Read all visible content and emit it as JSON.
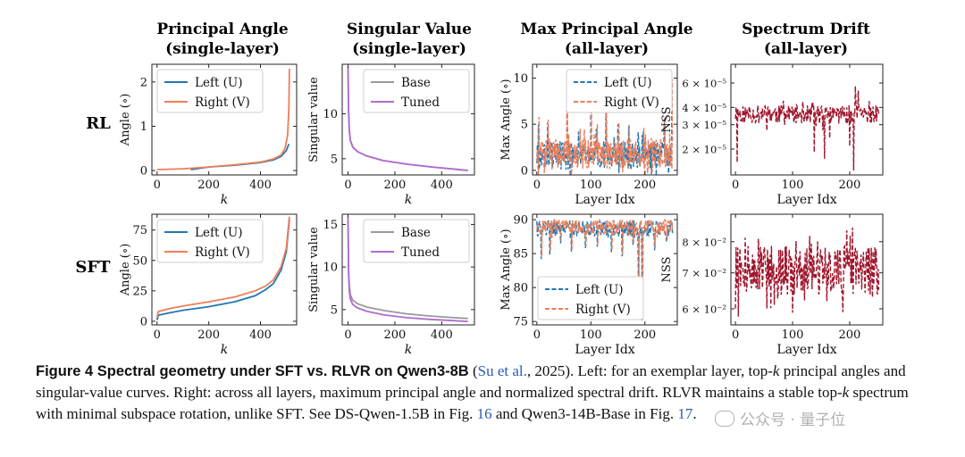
{
  "row_labels": [
    "RL",
    "SFT"
  ],
  "columns": [
    {
      "title": "Principal Angle",
      "subtitle": "(single-layer)"
    },
    {
      "title": "Singular Value",
      "subtitle": "(single-layer)"
    },
    {
      "title": "Max Principal Angle",
      "subtitle": "(all-layer)"
    },
    {
      "title": "Spectrum Drift",
      "subtitle": "(all-layer)"
    }
  ],
  "colors": {
    "blue": "#1f77b4",
    "orange": "#ee7e58",
    "gray": "#999999",
    "purple": "#b06bd0",
    "crimson": "#a0162d"
  },
  "chart_data": [
    {
      "id": "rl-angle",
      "type": "line",
      "xlabel": "k",
      "ylabel": "Angle (∘)",
      "xlim": [
        -20,
        540
      ],
      "ylim": [
        -0.1,
        2.4
      ],
      "xticks": [
        0,
        200,
        400
      ],
      "yticks": [
        0,
        1,
        2
      ],
      "legend_position": "top-left",
      "series": [
        {
          "name": "Left (U)",
          "color": "blue",
          "style": "solid",
          "x": [
            130,
            200,
            300,
            400,
            450,
            480,
            500,
            510
          ],
          "y": [
            0.02,
            0.08,
            0.12,
            0.18,
            0.24,
            0.32,
            0.45,
            0.6
          ]
        },
        {
          "name": "Right (V)",
          "color": "orange",
          "style": "solid",
          "x": [
            0,
            100,
            200,
            300,
            400,
            450,
            480,
            495,
            505,
            510,
            512
          ],
          "y": [
            0.02,
            0.04,
            0.08,
            0.13,
            0.19,
            0.26,
            0.35,
            0.5,
            0.8,
            1.4,
            2.3
          ]
        }
      ]
    },
    {
      "id": "rl-sv",
      "type": "line",
      "xlabel": "k",
      "ylabel": "Singular value",
      "xlim": [
        -25,
        540
      ],
      "ylim": [
        3.2,
        15.5
      ],
      "xticks": [
        0,
        200,
        400
      ],
      "yticks": [
        5,
        10
      ],
      "legend_position": "top-right",
      "series": [
        {
          "name": "Base",
          "color": "gray",
          "style": "solid",
          "x": [
            0,
            2,
            5,
            10,
            20,
            40,
            80,
            150,
            250,
            350,
            450,
            512
          ],
          "y": [
            15.2,
            10.5,
            8.2,
            7.0,
            6.3,
            5.8,
            5.3,
            4.8,
            4.4,
            4.1,
            3.85,
            3.7
          ]
        },
        {
          "name": "Tuned",
          "color": "purple",
          "style": "solid",
          "x": [
            0,
            2,
            5,
            10,
            20,
            40,
            80,
            150,
            250,
            350,
            450,
            512
          ],
          "y": [
            15.2,
            10.5,
            8.2,
            7.0,
            6.3,
            5.8,
            5.3,
            4.8,
            4.4,
            4.1,
            3.85,
            3.7
          ]
        }
      ]
    },
    {
      "id": "rl-max",
      "type": "line",
      "xlabel": "Layer Idx",
      "ylabel": "Max Angle (∘)",
      "xlim": [
        -8,
        260
      ],
      "ylim": [
        -0.5,
        11.5
      ],
      "xticks": [
        0,
        100,
        200
      ],
      "yticks": [
        0,
        5,
        10
      ],
      "legend_position": "top-right",
      "series": [
        {
          "name": "Left (U)",
          "color": "blue",
          "style": "dashed",
          "gen": "noise",
          "n": 252,
          "base": 1.6,
          "amp": 1.6,
          "spikes": [
            [
              3,
              5
            ],
            [
              20,
              5.2
            ],
            [
              56,
              9.5
            ],
            [
              77,
              4.2
            ],
            [
              100,
              7.9
            ],
            [
              110,
              4.5
            ],
            [
              128,
              6.3
            ],
            [
              150,
              5.0
            ],
            [
              170,
              4.8
            ],
            [
              197,
              4.2
            ],
            [
              236,
              5.6
            ],
            [
              250,
              9.6
            ]
          ],
          "seed": 3
        },
        {
          "name": "Right (V)",
          "color": "orange",
          "style": "dashed",
          "gen": "noise",
          "n": 252,
          "base": 1.8,
          "amp": 1.7,
          "spikes": [
            [
              4,
              5.8
            ],
            [
              21,
              5.5
            ],
            [
              56,
              9.2
            ],
            [
              80,
              4.5
            ],
            [
              101,
              7.6
            ],
            [
              112,
              5.0
            ],
            [
              129,
              6.6
            ],
            [
              152,
              5.2
            ],
            [
              171,
              5.0
            ],
            [
              198,
              4.6
            ],
            [
              237,
              5.8
            ],
            [
              251,
              9.9
            ]
          ],
          "seed": 7
        }
      ]
    },
    {
      "id": "rl-drift",
      "type": "line",
      "xlabel": "Layer Idx",
      "ylabel": "NSS",
      "yscale": "log",
      "xlim": [
        -8,
        258
      ],
      "ylim": [
        1.3e-05,
        8.2e-05
      ],
      "xticks": [
        0,
        100,
        200
      ],
      "yticks": [
        2e-05,
        3e-05,
        4e-05,
        6e-05
      ],
      "ytick_labels": [
        "2 × 10⁻⁵",
        "3 × 10⁻⁵",
        "4 × 10⁻⁵",
        "6 × 10⁻⁵"
      ],
      "legend_position": "none",
      "series": [
        {
          "name": "NSS",
          "color": "crimson",
          "style": "dashed",
          "gen": "noise",
          "n": 252,
          "base": 3.6e-05,
          "amp": 5.5e-06,
          "spikes": [
            [
              3,
              1.6e-05
            ],
            [
              138,
              1.9e-05
            ],
            [
              156,
              1.7e-05
            ],
            [
              165,
              2.4e-05
            ],
            [
              200,
              2.1e-05
            ],
            [
              210,
              5.7e-05
            ],
            [
              215,
              5.3e-05
            ],
            [
              207,
              1.4e-05
            ]
          ],
          "seed": 11
        }
      ]
    },
    {
      "id": "sft-angle",
      "type": "line",
      "xlabel": "k",
      "ylabel": "Angle (∘)",
      "xlim": [
        -20,
        540
      ],
      "ylim": [
        -3,
        88
      ],
      "xticks": [
        0,
        200,
        400
      ],
      "yticks": [
        0,
        25,
        50,
        75
      ],
      "legend_position": "top-left",
      "series": [
        {
          "name": "Left (U)",
          "color": "blue",
          "style": "solid",
          "x": [
            0,
            5,
            50,
            100,
            200,
            300,
            380,
            420,
            450,
            480,
            500,
            512
          ],
          "y": [
            1,
            5,
            7,
            9,
            12,
            16,
            21,
            26,
            31,
            42,
            57,
            84
          ]
        },
        {
          "name": "Right (V)",
          "color": "orange",
          "style": "solid",
          "x": [
            0,
            5,
            50,
            100,
            200,
            300,
            380,
            420,
            450,
            480,
            500,
            512
          ],
          "y": [
            3,
            8,
            10.5,
            12.5,
            16,
            20,
            25,
            29,
            34,
            45,
            60,
            86
          ]
        }
      ]
    },
    {
      "id": "sft-sv",
      "type": "line",
      "xlabel": "k",
      "ylabel": "Singular value",
      "xlim": [
        -25,
        540
      ],
      "ylim": [
        3.2,
        16.2
      ],
      "xticks": [
        0,
        200,
        400
      ],
      "yticks": [
        5,
        10,
        15
      ],
      "legend_position": "top-right",
      "series": [
        {
          "name": "Base",
          "color": "gray",
          "style": "solid",
          "x": [
            0,
            2,
            5,
            10,
            20,
            40,
            80,
            150,
            250,
            350,
            450,
            512
          ],
          "y": [
            15.8,
            9.8,
            7.8,
            6.7,
            6.1,
            5.7,
            5.3,
            4.9,
            4.5,
            4.25,
            4.05,
            3.95
          ]
        },
        {
          "name": "Tuned",
          "color": "purple",
          "style": "solid",
          "x": [
            0,
            2,
            5,
            10,
            20,
            40,
            80,
            150,
            250,
            350,
            450,
            512
          ],
          "y": [
            15.8,
            9.3,
            7.2,
            6.2,
            5.6,
            5.2,
            4.8,
            4.4,
            4.05,
            3.85,
            3.7,
            3.6
          ]
        }
      ]
    },
    {
      "id": "sft-max",
      "type": "line",
      "xlabel": "Layer Idx",
      "ylabel": "Max Angle (∘)",
      "xlim": [
        -8,
        260
      ],
      "ylim": [
        74.5,
        90.8
      ],
      "xticks": [
        0,
        100,
        200
      ],
      "yticks": [
        75,
        80,
        85,
        90
      ],
      "legend_position": "bottom-left",
      "series": [
        {
          "name": "Left (U)",
          "color": "blue",
          "style": "dashed",
          "gen": "noise",
          "n": 252,
          "base": 88.8,
          "amp": 1.2,
          "cap": 89.9,
          "spikes": [
            [
              8,
              84.2
            ],
            [
              24,
              84.8
            ],
            [
              44,
              86.5
            ],
            [
              64,
              85.3
            ],
            [
              90,
              85.8
            ],
            [
              112,
              86.0
            ],
            [
              138,
              85.2
            ],
            [
              158,
              84.6
            ],
            [
              178,
              86.2
            ],
            [
              188,
              80.5
            ],
            [
              195,
              75.2
            ],
            [
              218,
              85.5
            ],
            [
              240,
              86.8
            ]
          ],
          "seed": 19
        },
        {
          "name": "Right (V)",
          "color": "orange",
          "style": "dashed",
          "gen": "noise",
          "n": 252,
          "base": 89.0,
          "amp": 1.1,
          "cap": 90.0,
          "spikes": [
            [
              9,
              84.6
            ],
            [
              25,
              85.2
            ],
            [
              45,
              86.8
            ],
            [
              65,
              85.6
            ],
            [
              91,
              86.1
            ],
            [
              113,
              86.3
            ],
            [
              139,
              85.5
            ],
            [
              159,
              84.9
            ],
            [
              179,
              86.5
            ],
            [
              189,
              81.0
            ],
            [
              196,
              76.0
            ],
            [
              219,
              85.8
            ],
            [
              241,
              87.0
            ]
          ],
          "seed": 23
        }
      ]
    },
    {
      "id": "sft-drift",
      "type": "line",
      "xlabel": "Layer Idx",
      "ylabel": "NSS",
      "yscale": "log",
      "xlim": [
        -8,
        258
      ],
      "ylim": [
        0.056,
        0.09
      ],
      "xticks": [
        0,
        100,
        200
      ],
      "yticks": [
        0.06,
        0.07,
        0.08
      ],
      "ytick_labels": [
        "6 × 10⁻²",
        "7 × 10⁻²",
        "8 × 10⁻²"
      ],
      "legend_position": "none",
      "series": [
        {
          "name": "NSS",
          "color": "crimson",
          "style": "dashed",
          "gen": "noise",
          "n": 252,
          "base": 0.071,
          "amp": 0.0075,
          "spikes": [
            [
              5,
              0.058
            ],
            [
              40,
              0.081
            ],
            [
              68,
              0.061
            ],
            [
              100,
              0.059
            ],
            [
              130,
              0.082
            ],
            [
              160,
              0.062
            ],
            [
              195,
              0.084
            ],
            [
              205,
              0.085
            ],
            [
              240,
              0.063
            ]
          ],
          "seed": 31
        }
      ]
    }
  ],
  "caption": {
    "head": "Figure 4  Spectral geometry under SFT vs. RLVR on Qwen3-8B",
    "cite_open": " (",
    "cite": "Su et al.",
    "cite_close": ", 2025). Left: for an exemplar layer, top-",
    "k1": "k",
    "part2": " principal angles and singular-value curves. Right: across all layers, maximum principal angle and normalized spectral drift. RLVR maintains a stable top-",
    "k2": "k",
    "part3": " spectrum with minimal subspace rotation, unlike SFT. See DS-Qwen-1.5B in Fig. ",
    "fig16": "16",
    "part4": " and Qwen3-14B-Base in Fig. ",
    "fig17": "17",
    "end": "."
  },
  "watermark": {
    "text": "公众号 · 量子位",
    "icon": "wechat-icon"
  }
}
